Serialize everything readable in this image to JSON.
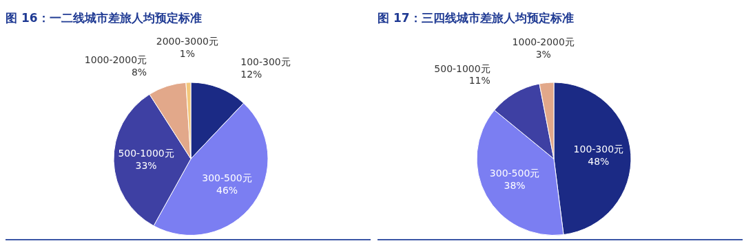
{
  "chart_data": [
    {
      "type": "pie",
      "title": "图 16：一二线城市差旅人均预定标准",
      "categories": [
        "100-300元",
        "300-500元",
        "500-1000元",
        "1000-2000元",
        "2000-3000元"
      ],
      "values": [
        12,
        46,
        33,
        8,
        1
      ],
      "value_labels": [
        "12%",
        "46%",
        "33%",
        "8%",
        "1%"
      ],
      "colors": [
        "#1b2a85",
        "#7b7ef2",
        "#3e40a3",
        "#e2a88a",
        "#f3c77c"
      ],
      "legend": false
    },
    {
      "type": "pie",
      "title": "图 17：三四线城市差旅人均预定标准",
      "categories": [
        "100-300元",
        "300-500元",
        "500-1000元",
        "1000-2000元"
      ],
      "values": [
        48,
        38,
        11,
        3
      ],
      "value_labels": [
        "48%",
        "38%",
        "11%",
        "3%"
      ],
      "colors": [
        "#1b2a85",
        "#7b7ef2",
        "#3e40a3",
        "#e2a88a"
      ],
      "legend": false
    }
  ]
}
